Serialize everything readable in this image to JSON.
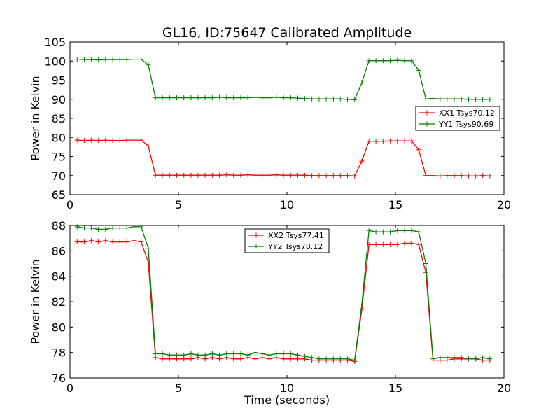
{
  "title": "GL16, ID:75647 Calibrated Amplitude",
  "colors": {
    "red": "#ff0000",
    "green": "#008000"
  },
  "chart_data": [
    {
      "type": "line",
      "xlabel": "",
      "ylabel": "Power in Kelvin",
      "xlim": [
        0,
        20
      ],
      "ylim": [
        65,
        105
      ],
      "xticks": [
        0,
        5,
        10,
        15,
        20
      ],
      "yticks": [
        65,
        70,
        75,
        80,
        85,
        90,
        95,
        100,
        105
      ],
      "legend_position": "center-right",
      "x": [
        0.33,
        0.66,
        0.98,
        1.31,
        1.64,
        1.97,
        2.3,
        2.62,
        2.95,
        3.28,
        3.61,
        3.94,
        4.26,
        4.59,
        4.92,
        5.25,
        5.58,
        5.9,
        6.23,
        6.56,
        6.89,
        7.22,
        7.54,
        7.87,
        8.2,
        8.53,
        8.86,
        9.18,
        9.51,
        9.84,
        10.17,
        10.5,
        10.82,
        11.15,
        11.48,
        11.81,
        12.14,
        12.46,
        12.79,
        13.12,
        13.45,
        13.78,
        14.1,
        14.43,
        14.76,
        15.09,
        15.42,
        15.74,
        16.07,
        16.4,
        16.73,
        17.06,
        17.38,
        17.71,
        18.04,
        18.37,
        18.7,
        19.02,
        19.35
      ],
      "series": [
        {
          "name": "XX1 Tsys70.12",
          "color": "#ff0000",
          "values": [
            79.3,
            79.2,
            79.3,
            79.2,
            79.3,
            79.2,
            79.2,
            79.3,
            79.3,
            79.3,
            77.8,
            70.1,
            70.1,
            70.1,
            70.1,
            70.1,
            70.1,
            70.1,
            70.1,
            70.1,
            70.1,
            70.2,
            70.1,
            70.1,
            70.2,
            70.1,
            70.1,
            70.1,
            70.2,
            70.1,
            70.1,
            70.1,
            70.1,
            70.0,
            70.0,
            70.0,
            70.0,
            70.0,
            70.0,
            69.9,
            73.8,
            79.0,
            79.0,
            79.0,
            79.1,
            79.1,
            79.1,
            79.1,
            76.8,
            70.0,
            70.0,
            69.9,
            70.0,
            70.0,
            70.0,
            69.9,
            69.9,
            70.0,
            69.9
          ]
        },
        {
          "name": "YY1 Tsys90.69",
          "color": "#008000",
          "values": [
            100.5,
            100.4,
            100.4,
            100.3,
            100.4,
            100.4,
            100.4,
            100.4,
            100.5,
            100.5,
            99.0,
            90.4,
            90.4,
            90.4,
            90.4,
            90.4,
            90.4,
            90.4,
            90.4,
            90.4,
            90.5,
            90.4,
            90.4,
            90.4,
            90.4,
            90.5,
            90.4,
            90.4,
            90.5,
            90.4,
            90.4,
            90.3,
            90.2,
            90.1,
            90.1,
            90.1,
            90.1,
            90.1,
            90.0,
            89.9,
            94.3,
            100.1,
            100.1,
            100.1,
            100.1,
            100.2,
            100.1,
            100.1,
            97.6,
            90.1,
            90.2,
            90.1,
            90.1,
            90.1,
            90.1,
            90.0,
            90.0,
            90.0,
            90.0
          ]
        }
      ]
    },
    {
      "type": "line",
      "xlabel": "Time (seconds)",
      "ylabel": "Power in Kelvin",
      "xlim": [
        0,
        20
      ],
      "ylim": [
        76,
        88
      ],
      "xticks": [
        0,
        5,
        10,
        15,
        20
      ],
      "yticks": [
        76,
        78,
        80,
        82,
        84,
        86,
        88
      ],
      "legend_position": "upper-center",
      "x": [
        0.33,
        0.66,
        0.98,
        1.31,
        1.64,
        1.97,
        2.3,
        2.62,
        2.95,
        3.28,
        3.61,
        3.94,
        4.26,
        4.59,
        4.92,
        5.25,
        5.58,
        5.9,
        6.23,
        6.56,
        6.89,
        7.22,
        7.54,
        7.87,
        8.2,
        8.53,
        8.86,
        9.18,
        9.51,
        9.84,
        10.17,
        10.5,
        10.82,
        11.15,
        11.48,
        11.81,
        12.14,
        12.46,
        12.79,
        13.12,
        13.45,
        13.78,
        14.1,
        14.43,
        14.76,
        15.09,
        15.42,
        15.74,
        16.07,
        16.4,
        16.73,
        17.06,
        17.38,
        17.71,
        18.04,
        18.37,
        18.7,
        19.02,
        19.35
      ],
      "series": [
        {
          "name": "XX2 Tsys77.41",
          "color": "#ff0000",
          "values": [
            86.7,
            86.7,
            86.8,
            86.7,
            86.8,
            86.7,
            86.7,
            86.7,
            86.8,
            86.7,
            85.1,
            77.6,
            77.5,
            77.5,
            77.5,
            77.5,
            77.5,
            77.6,
            77.5,
            77.6,
            77.5,
            77.6,
            77.5,
            77.5,
            77.6,
            77.5,
            77.6,
            77.5,
            77.6,
            77.5,
            77.5,
            77.5,
            77.5,
            77.4,
            77.4,
            77.4,
            77.4,
            77.4,
            77.4,
            77.3,
            81.4,
            86.5,
            86.5,
            86.5,
            86.5,
            86.5,
            86.6,
            86.6,
            86.5,
            84.3,
            77.4,
            77.4,
            77.4,
            77.5,
            77.5,
            77.5,
            77.5,
            77.4,
            77.4
          ]
        },
        {
          "name": "YY2 Tsys78.12",
          "color": "#008000",
          "values": [
            87.9,
            87.8,
            87.8,
            87.7,
            87.7,
            87.8,
            87.8,
            87.8,
            87.9,
            87.9,
            86.2,
            77.9,
            77.9,
            77.8,
            77.8,
            77.8,
            77.9,
            77.8,
            77.8,
            77.9,
            77.8,
            77.9,
            77.9,
            77.9,
            77.8,
            78.0,
            77.9,
            77.8,
            77.9,
            77.9,
            77.9,
            77.8,
            77.7,
            77.6,
            77.5,
            77.5,
            77.5,
            77.5,
            77.5,
            77.4,
            81.8,
            87.6,
            87.5,
            87.5,
            87.5,
            87.6,
            87.6,
            87.6,
            87.5,
            85.0,
            77.5,
            77.6,
            77.6,
            77.6,
            77.6,
            77.5,
            77.5,
            77.6,
            77.5
          ]
        }
      ]
    }
  ]
}
